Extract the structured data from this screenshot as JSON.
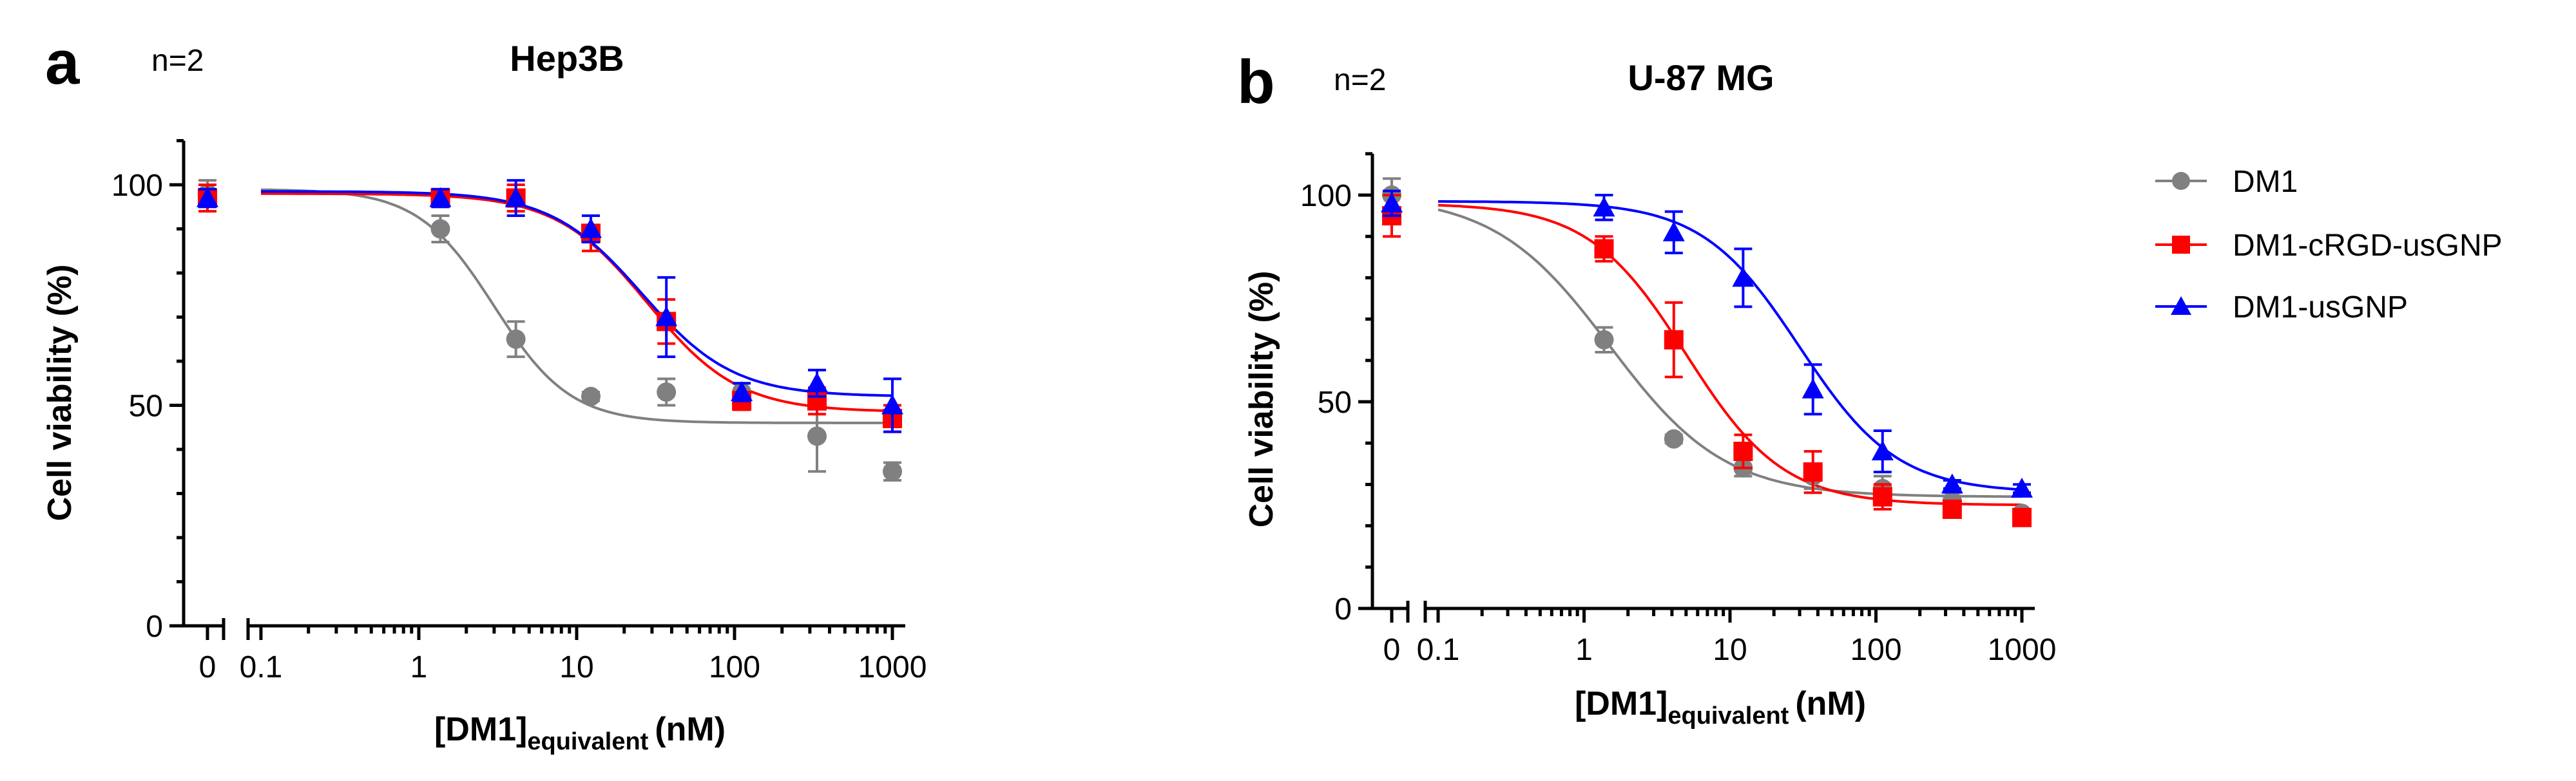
{
  "legend": {
    "entries": [
      {
        "label": "DM1",
        "color": "#808080",
        "marker": "circle"
      },
      {
        "label": "DM1-cRGD-usGNP",
        "color": "#ff0000",
        "marker": "square"
      },
      {
        "label": "DM1-usGNP",
        "color": "#0000ff",
        "marker": "triangle"
      }
    ]
  },
  "chart_data": [
    {
      "type": "scatter",
      "panel": "a",
      "n_label": "n=2",
      "title": "Hep3B",
      "ylabel": "Cell viability (%)",
      "xlabel_main": "[DM1]",
      "xlabel_sub": "equivalent",
      "xlabel_unit": "(nM)",
      "xscale": "log",
      "xlim": [
        0.1,
        1000
      ],
      "ylim": [
        0,
        110
      ],
      "x_ticks": [
        "0.1",
        "1",
        "10",
        "100",
        "1000"
      ],
      "x_zero_tick": "0",
      "y_ticks": [
        "0",
        "50",
        "100"
      ],
      "y_tick_values": [
        0,
        50,
        100
      ],
      "x": [
        1.37,
        4.12,
        12.3,
        37,
        111,
        333,
        1000
      ],
      "series": [
        {
          "name": "DM1",
          "zero": 98,
          "zero_err": 3,
          "values": [
            90,
            65,
            52,
            53,
            53,
            43,
            35
          ],
          "errors": [
            3,
            4,
            1,
            3,
            2,
            8,
            2
          ],
          "fit": {
            "bottom": 46,
            "top": 99,
            "ec50": 3.0,
            "hill": 1.8
          }
        },
        {
          "name": "DM1-cRGD-usGNP",
          "zero": 97,
          "zero_err": 3,
          "values": [
            97,
            97,
            89,
            69,
            51,
            51,
            47
          ],
          "errors": [
            2,
            3,
            4,
            5,
            2,
            3,
            3
          ],
          "fit": {
            "bottom": 48.5,
            "top": 98,
            "ec50": 28,
            "hill": 1.5
          }
        },
        {
          "name": "DM1-usGNP",
          "zero": 97,
          "zero_err": 2,
          "values": [
            97,
            97,
            90,
            70,
            53,
            55,
            50
          ],
          "errors": [
            2,
            4,
            3,
            9,
            2,
            3,
            6
          ],
          "fit": {
            "bottom": 52,
            "top": 98.5,
            "ec50": 26,
            "hill": 1.5
          }
        }
      ]
    },
    {
      "type": "scatter",
      "panel": "b",
      "n_label": "n=2",
      "title": "U-87 MG",
      "ylabel": "Cell viability (%)",
      "xlabel_main": "[DM1]",
      "xlabel_sub": "equivalent",
      "xlabel_unit": "(nM)",
      "xscale": "log",
      "xlim": [
        0.1,
        1000
      ],
      "ylim": [
        0,
        110
      ],
      "x_ticks": [
        "0.1",
        "1",
        "10",
        "100",
        "1000"
      ],
      "x_zero_tick": "0",
      "y_ticks": [
        "0",
        "50",
        "100"
      ],
      "y_tick_values": [
        0,
        50,
        100
      ],
      "x": [
        1.37,
        4.12,
        12.3,
        37,
        111,
        333,
        1000
      ],
      "series": [
        {
          "name": "DM1",
          "zero": 100,
          "zero_err": 4,
          "values": [
            65,
            41,
            34,
            32,
            29,
            26,
            23
          ],
          "errors": [
            3,
            1,
            2,
            3,
            3,
            2,
            1
          ],
          "fit": {
            "bottom": 27,
            "top": 100,
            "ec50": 1.5,
            "hill": 1.1
          }
        },
        {
          "name": "DM1-cRGD-usGNP",
          "zero": 95,
          "zero_err": 5,
          "values": [
            87,
            65,
            38,
            33,
            27,
            24,
            22
          ],
          "errors": [
            3,
            9,
            4,
            5,
            3,
            2,
            1
          ],
          "fit": {
            "bottom": 25,
            "top": 98,
            "ec50": 5.0,
            "hill": 1.3
          }
        },
        {
          "name": "DM1-usGNP",
          "zero": 98,
          "zero_err": 3,
          "values": [
            97,
            91,
            80,
            53,
            38,
            30,
            29
          ],
          "errors": [
            3,
            5,
            7,
            6,
            5,
            1,
            1
          ],
          "fit": {
            "bottom": 28,
            "top": 98.5,
            "ec50": 30,
            "hill": 1.3
          }
        }
      ]
    }
  ]
}
